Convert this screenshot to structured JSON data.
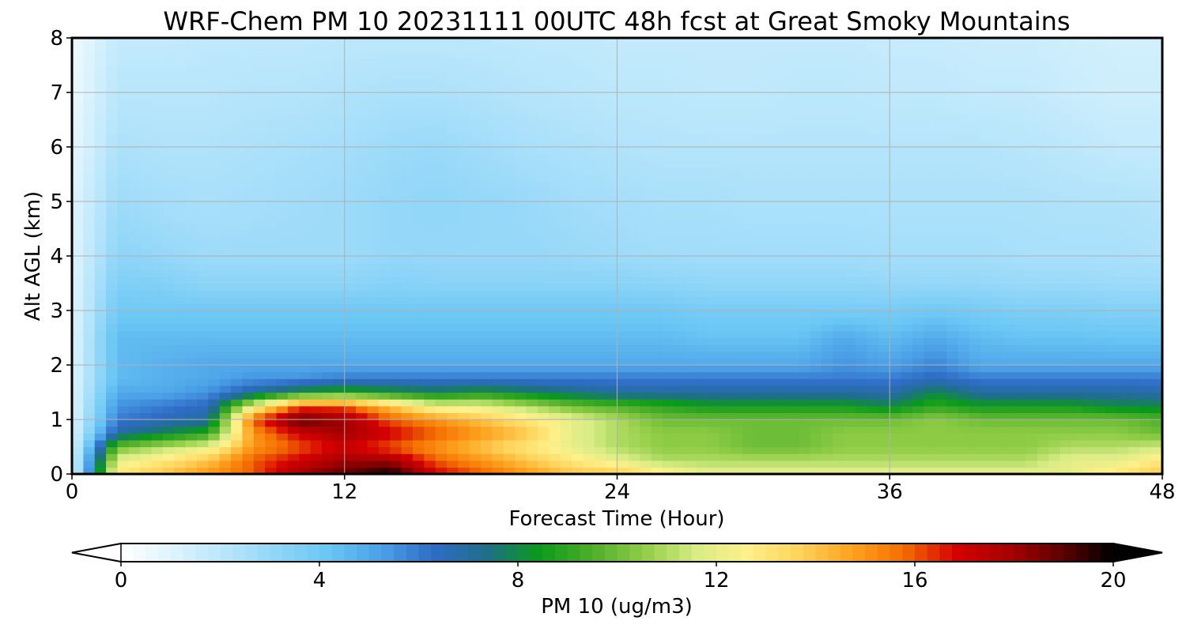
{
  "chart_data": {
    "type": "heatmap",
    "title": "WRF-Chem PM 10  20231111 00UTC 48h fcst at Great Smoky Mountains",
    "xlabel": "Forecast Time (Hour)",
    "ylabel": "Alt AGL (km)",
    "xlim": [
      0,
      48
    ],
    "ylim": [
      0,
      8
    ],
    "xticks": [
      0,
      12,
      24,
      36,
      48
    ],
    "yticks": [
      0,
      1,
      2,
      3,
      4,
      5,
      6,
      7,
      8
    ],
    "grid": true,
    "colorbar": {
      "label": "PM 10  (ug/m3)",
      "range": [
        0,
        20
      ],
      "ticks": [
        0,
        4,
        8,
        12,
        16,
        20
      ],
      "extend": "both",
      "orientation": "horizontal",
      "colors": [
        "#ffffff",
        "#def4fd",
        "#b8e6fb",
        "#8fd5f8",
        "#69c6f4",
        "#4a9fe6",
        "#2f6cc6",
        "#1f6f8a",
        "#0a9a1a",
        "#4cae2a",
        "#8fcc45",
        "#d7ec86",
        "#fff08a",
        "#ffd35a",
        "#ffa21f",
        "#f36d00",
        "#d40000",
        "#a70000",
        "#5e0000",
        "#000000"
      ]
    },
    "time_hours": [
      0,
      2,
      4,
      6,
      8,
      10,
      12,
      14,
      16,
      18,
      20,
      22,
      24,
      26,
      28,
      30,
      32,
      34,
      36,
      38,
      40,
      42,
      44,
      46,
      48
    ],
    "altitude_km": [
      0,
      0.25,
      0.5,
      0.75,
      1,
      1.25,
      1.5,
      1.75,
      2,
      2.5,
      3,
      3.5,
      4,
      5,
      6,
      7,
      8
    ],
    "pm10_ugm3": [
      [
        1,
        13,
        14,
        15,
        16,
        18,
        19,
        20,
        17,
        16,
        15,
        14,
        14,
        13,
        12,
        12,
        12,
        12,
        12,
        12,
        12,
        12,
        12,
        13,
        14
      ],
      [
        1,
        12,
        13,
        14,
        16,
        17,
        18,
        18,
        16,
        15,
        14,
        13,
        12,
        11,
        11,
        11,
        11,
        11,
        11,
        11,
        11,
        11,
        12,
        12,
        13
      ],
      [
        1,
        10,
        11,
        12,
        15,
        16,
        17,
        16,
        15,
        14,
        13,
        12,
        11,
        10.5,
        10.5,
        10,
        10,
        10.5,
        10.5,
        10.5,
        10.5,
        10.5,
        11,
        11,
        11.5
      ],
      [
        1,
        7,
        8,
        9,
        15,
        17,
        18,
        17,
        16,
        15,
        14,
        12,
        11,
        10.5,
        10.5,
        10,
        10,
        10.5,
        10.5,
        10.5,
        10.5,
        10.5,
        10.5,
        10.5,
        10
      ],
      [
        1,
        6,
        6.5,
        7,
        16,
        19,
        18,
        16,
        15,
        14,
        13,
        12,
        11,
        10,
        10,
        10,
        10,
        10,
        10,
        10.5,
        10,
        10,
        10,
        10,
        9.5
      ],
      [
        1,
        5.5,
        6,
        6.5,
        12,
        16,
        16,
        14,
        12,
        12,
        11,
        10,
        9.5,
        9,
        8.5,
        8.5,
        8.5,
        8.5,
        8,
        9,
        8.5,
        8.5,
        8.5,
        8,
        8
      ],
      [
        1,
        5,
        5,
        5.5,
        7,
        8.5,
        9,
        8.5,
        8,
        8.5,
        8,
        7.5,
        7,
        7,
        7,
        7,
        7,
        7,
        6.8,
        8,
        7,
        7,
        7,
        7,
        6.8
      ],
      [
        1,
        4.5,
        4.8,
        5,
        5.5,
        5.5,
        6,
        6,
        6,
        6,
        6,
        6,
        6,
        6,
        6,
        6,
        6,
        6,
        6,
        6.5,
        6,
        6,
        6,
        6,
        6
      ],
      [
        1,
        4.5,
        4.8,
        5,
        5,
        5,
        5,
        5,
        5,
        5,
        5,
        5,
        5,
        5,
        5,
        5,
        5,
        5.5,
        5.2,
        5.8,
        5,
        5,
        5,
        5,
        5
      ],
      [
        1,
        4.5,
        4.5,
        4.5,
        4.5,
        4.5,
        4.5,
        4.5,
        4.5,
        4.5,
        4.5,
        4.5,
        4.5,
        4.5,
        4.3,
        4.3,
        4.3,
        5,
        4.5,
        5,
        4.5,
        4.3,
        4.3,
        4.2,
        4.2
      ],
      [
        1,
        4,
        4,
        4,
        4,
        4,
        4,
        4,
        4,
        4,
        4,
        4,
        4,
        4,
        3.8,
        3.8,
        3.8,
        3.8,
        3.8,
        4,
        3.8,
        3.6,
        3.6,
        3.5,
        3.5
      ],
      [
        1,
        3.6,
        3.5,
        3.2,
        3.2,
        3.2,
        3.2,
        3.4,
        3.3,
        3.3,
        3.3,
        3.3,
        3.3,
        3.2,
        3.1,
        3.1,
        3.1,
        3.1,
        3,
        3,
        3,
        2.9,
        2.9,
        2.8,
        2.8
      ],
      [
        1,
        3.2,
        3,
        2.8,
        2.8,
        2.8,
        2.8,
        3,
        3,
        3,
        3,
        2.9,
        2.8,
        2.7,
        2.7,
        2.7,
        2.7,
        2.7,
        2.6,
        2.6,
        2.6,
        2.5,
        2.5,
        2.5,
        2.4
      ],
      [
        1,
        2.8,
        2.6,
        2.5,
        2.6,
        2.7,
        2.8,
        3,
        3.1,
        3,
        2.9,
        2.7,
        2.6,
        2.5,
        2.5,
        2.4,
        2.4,
        2.4,
        2.4,
        2.4,
        2.4,
        2.4,
        2.3,
        2.3,
        2.2
      ],
      [
        0.8,
        2.4,
        2.3,
        2.3,
        2.4,
        2.5,
        2.6,
        2.8,
        2.9,
        2.7,
        2.5,
        2.4,
        2.3,
        2.2,
        2.2,
        2.2,
        2.2,
        2.2,
        2.2,
        2.2,
        2.2,
        2.1,
        2,
        1.8,
        1.8
      ],
      [
        0.6,
        2.1,
        2.1,
        2.1,
        2.2,
        2.2,
        2.3,
        2.4,
        2.4,
        2.3,
        2.2,
        2.1,
        2,
        2,
        1.9,
        1.9,
        2,
        2,
        1.9,
        1.9,
        1.8,
        1.8,
        1.6,
        1.5,
        1.5
      ],
      [
        0.5,
        1.8,
        1.8,
        1.9,
        1.9,
        1.9,
        2,
        2,
        2,
        2,
        1.9,
        1.9,
        1.8,
        1.8,
        1.8,
        1.8,
        1.8,
        1.8,
        1.7,
        1.7,
        1.6,
        1.6,
        1.5,
        1.4,
        1.4
      ]
    ]
  }
}
